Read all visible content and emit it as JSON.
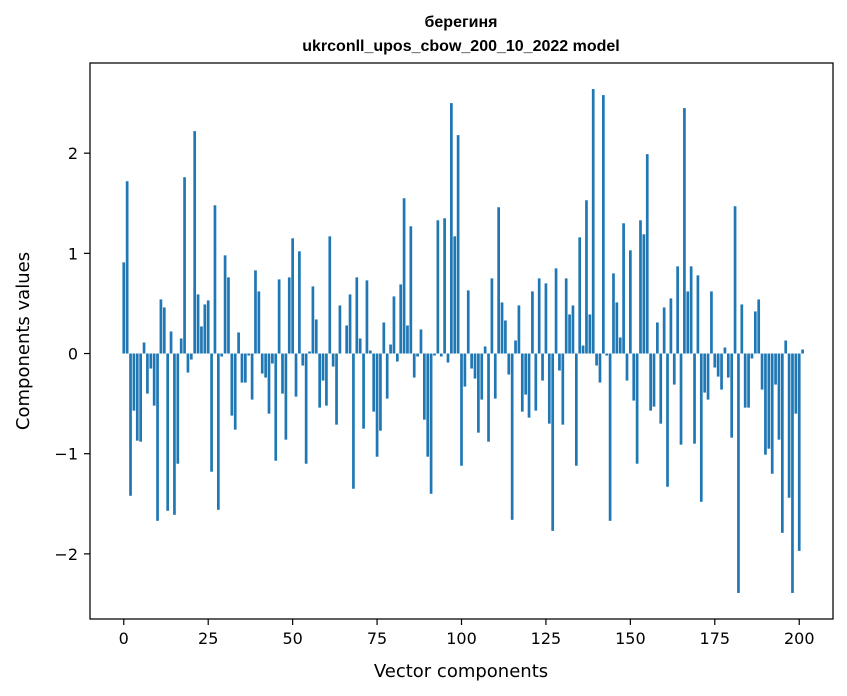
{
  "chart_data": {
    "type": "bar",
    "title_line1": "берегиня",
    "title_line2": "ukrconll_upos_cbow_200_10_2022 model",
    "xlabel": "Vector components",
    "ylabel": "Components values",
    "xlim": [
      -10,
      210
    ],
    "ylim": [
      -2.65,
      2.9
    ],
    "xticks": [
      0,
      25,
      50,
      75,
      100,
      125,
      150,
      175,
      200
    ],
    "yticks": [
      -2,
      -1,
      0,
      1,
      2
    ],
    "ytick_labels": [
      "−2",
      "−1",
      "0",
      "1",
      "2"
    ],
    "grid": false,
    "bar_color": "#1f77b4",
    "values": [
      0.91,
      1.72,
      -1.42,
      -0.57,
      -0.87,
      -0.88,
      0.11,
      -0.4,
      -0.15,
      -0.52,
      -1.67,
      0.54,
      0.46,
      -1.57,
      0.22,
      -1.61,
      -1.1,
      0.15,
      1.76,
      -0.19,
      -0.06,
      2.22,
      0.59,
      0.27,
      0.49,
      0.53,
      -1.18,
      1.48,
      -1.56,
      -0.03,
      0.98,
      0.76,
      -0.62,
      -0.76,
      0.21,
      -0.29,
      -0.29,
      -0.02,
      -0.46,
      0.83,
      0.62,
      -0.2,
      -0.24,
      -0.6,
      -0.1,
      -1.07,
      0.74,
      -0.4,
      -0.86,
      0.76,
      1.15,
      -0.43,
      1.02,
      -0.12,
      -1.1,
      0.02,
      0.67,
      0.34,
      -0.54,
      -0.27,
      -0.52,
      1.17,
      -0.13,
      -0.71,
      0.48,
      0.0,
      0.28,
      0.59,
      -1.35,
      0.76,
      0.15,
      -0.75,
      0.73,
      0.03,
      -0.58,
      -1.03,
      -0.77,
      0.31,
      -0.45,
      0.09,
      0.57,
      -0.08,
      0.69,
      1.55,
      0.28,
      1.27,
      -0.24,
      -0.03,
      0.24,
      -0.66,
      -1.03,
      -1.4,
      -0.02,
      1.33,
      -0.03,
      1.35,
      -0.09,
      2.5,
      1.17,
      2.18,
      -1.12,
      -0.33,
      0.63,
      -0.15,
      -0.25,
      -0.79,
      -0.46,
      0.07,
      -0.88,
      0.75,
      -0.45,
      1.46,
      0.51,
      0.33,
      -0.21,
      -1.66,
      0.13,
      0.48,
      -0.58,
      -0.41,
      -0.64,
      0.62,
      -0.57,
      0.75,
      -0.27,
      0.7,
      -0.7,
      -1.77,
      0.85,
      -0.17,
      -0.71,
      0.75,
      0.39,
      0.48,
      -1.12,
      1.16,
      0.08,
      1.53,
      0.39,
      2.64,
      -0.12,
      -0.29,
      2.58,
      -0.02,
      -1.67,
      0.8,
      0.51,
      0.16,
      1.3,
      -0.27,
      1.03,
      -0.47,
      -1.1,
      1.33,
      1.19,
      1.99,
      -0.57,
      -0.53,
      0.31,
      -0.7,
      0.46,
      -1.33,
      0.55,
      -0.31,
      0.87,
      -0.91,
      2.45,
      0.62,
      0.87,
      -0.9,
      0.78,
      -1.48,
      -0.39,
      -0.46,
      0.62,
      -0.14,
      -0.23,
      -0.36,
      0.06,
      -0.24,
      -0.84,
      1.47,
      -2.39,
      0.49,
      -0.54,
      -0.54,
      -0.05,
      0.42,
      0.54,
      -0.36,
      -1.01,
      -0.95,
      -1.2,
      -0.31,
      -0.86,
      -1.79,
      0.13,
      -1.44,
      -2.39,
      -0.6,
      -1.97,
      0.04
    ]
  }
}
